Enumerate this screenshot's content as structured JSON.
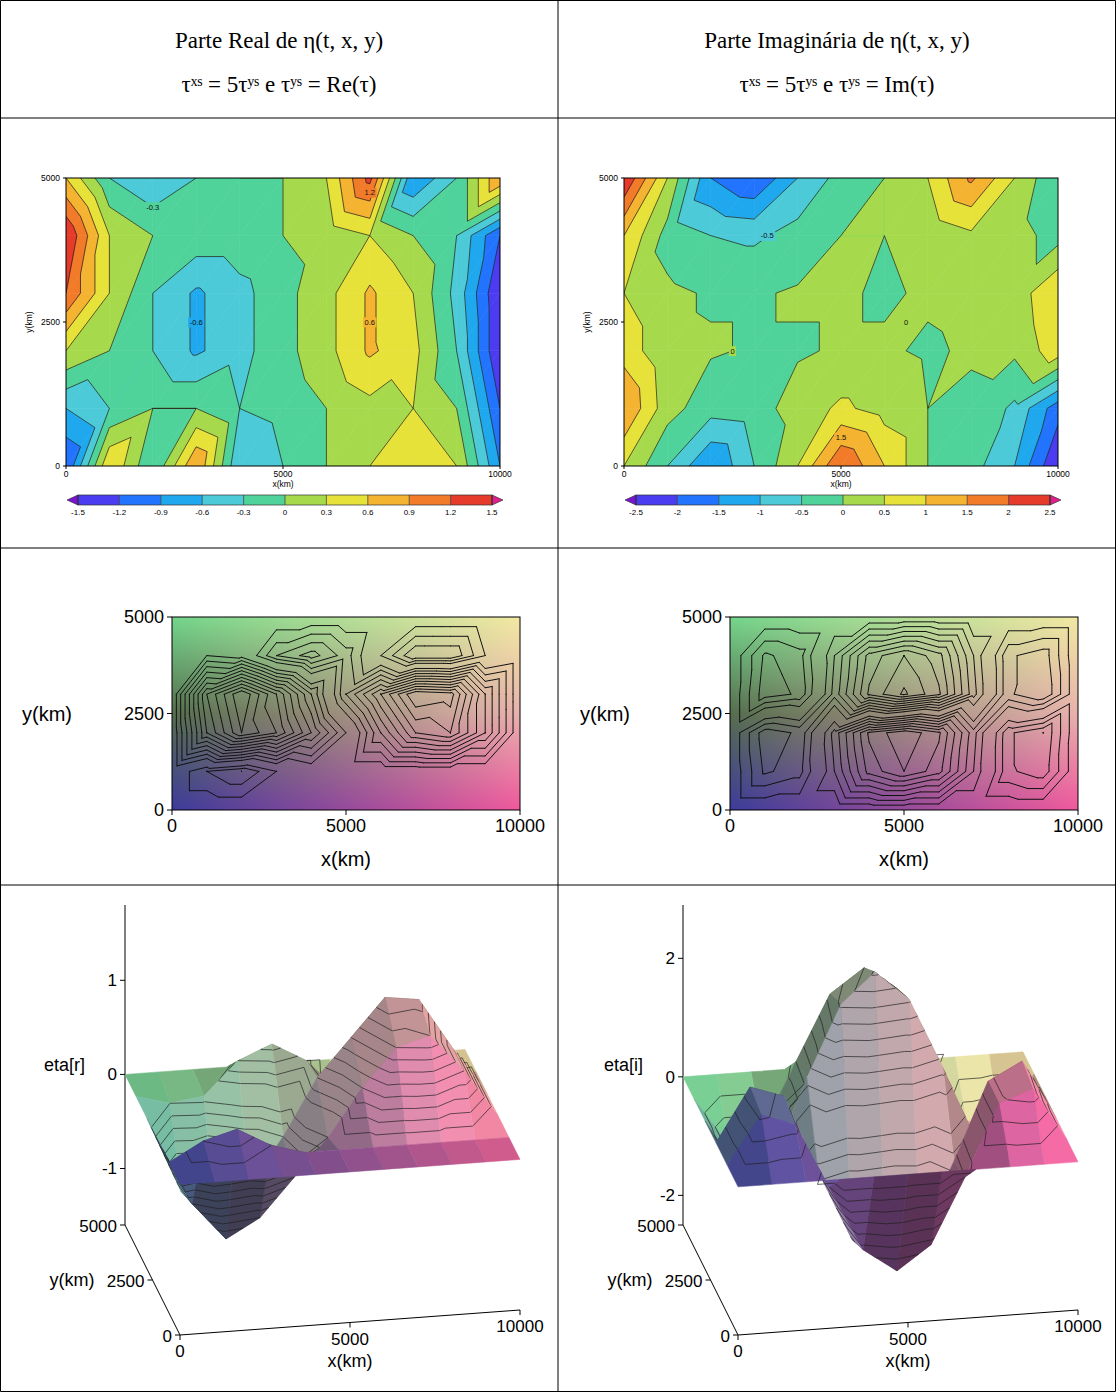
{
  "header": {
    "columns": [
      {
        "title": "Parte Real de η(t, x, y)",
        "subtitle": "τˣˢ = 5τʸˢ e τʸˢ = Re(τ)"
      },
      {
        "title": "Parte Imaginária de η(t, x, y)",
        "subtitle": "τˣˢ = 5τʸˢ e τʸˢ = Im(τ)"
      }
    ]
  },
  "chart_data": [
    {
      "type": "filled_contour",
      "x": [
        0,
        1000,
        2000,
        3000,
        4000,
        5000,
        6000,
        7000,
        8000,
        9000,
        10000
      ],
      "y": [
        0,
        1000,
        2000,
        3000,
        4000,
        5000
      ],
      "cells": [
        [
          -1.2,
          0.6,
          -0.3,
          0.9,
          -0.6,
          -0.3,
          0,
          0.3,
          0.6,
          0.3,
          -0.9
        ],
        [
          -0.6,
          -0.3,
          0,
          0,
          -0.3,
          -0.2,
          0,
          0.2,
          0.3,
          0,
          -1.2
        ],
        [
          0.3,
          0,
          -0.3,
          -0.65,
          -0.4,
          -0.1,
          0.2,
          0.65,
          0.4,
          -0.3,
          -1.5
        ],
        [
          1.2,
          0.3,
          -0.3,
          -0.65,
          -0.4,
          -0.1,
          0.2,
          0.65,
          0.3,
          -0.4,
          -1.5
        ],
        [
          1.5,
          0.3,
          0,
          -0.1,
          -0.1,
          0,
          0.1,
          0.3,
          0,
          -0.3,
          -1.2
        ],
        [
          0.6,
          -0.3,
          -0.6,
          -0.3,
          0,
          0,
          0.3,
          1.3,
          -0.9,
          -0.3,
          0.9
        ]
      ],
      "xlim": [
        0,
        10000
      ],
      "ylim": [
        0,
        5000
      ],
      "xticks": [
        0,
        5000,
        10000
      ],
      "yticks": [
        0,
        2500,
        5000
      ],
      "x_label": "x(km)",
      "y_label": "y(km)",
      "clim": [
        -1.5,
        1.5
      ],
      "cticks": [
        -1.5,
        -1.2,
        -0.9,
        -0.6,
        -0.3,
        0,
        0.3,
        0.6,
        0.9,
        1.2,
        1.5
      ],
      "annotations": [
        {
          "label": "-0.6",
          "x": 3000,
          "y": 2500
        },
        {
          "label": "0.6",
          "x": 7000,
          "y": 2500
        },
        {
          "label": "-0.3",
          "x": 2000,
          "y": 4500
        },
        {
          "label": "1.2",
          "x": 7000,
          "y": 4750
        }
      ]
    },
    {
      "type": "filled_contour",
      "x": [
        0,
        1000,
        2000,
        3000,
        4000,
        5000,
        6000,
        7000,
        8000,
        9000,
        10000
      ],
      "y": [
        0,
        1000,
        2000,
        3000,
        4000,
        5000
      ],
      "cells": [
        [
          0.5,
          -0.5,
          -1.5,
          -0.5,
          0.5,
          2.0,
          1.0,
          0,
          -0.3,
          -1,
          -2.5
        ],
        [
          1.5,
          0.2,
          -0.3,
          -0.2,
          0.2,
          0.6,
          0.3,
          0,
          -0.1,
          -0.6,
          -1.8
        ],
        [
          0.8,
          0.1,
          0.05,
          -0.05,
          -0.05,
          0.05,
          0.05,
          -0.05,
          0.05,
          0.1,
          0.8
        ],
        [
          0.5,
          0.1,
          -0.05,
          -0.05,
          0.05,
          0.05,
          -0.05,
          0.05,
          0.1,
          0.2,
          1.0
        ],
        [
          1.0,
          -0.2,
          -0.5,
          -0.6,
          -0.3,
          0,
          0,
          0.1,
          0.4,
          0.2,
          -0.2
        ],
        [
          2.5,
          0.5,
          -1.5,
          -2.0,
          -1.0,
          -0.3,
          0,
          0.5,
          1.6,
          0.5,
          -0.5
        ]
      ],
      "xlim": [
        0,
        10000
      ],
      "ylim": [
        0,
        5000
      ],
      "xticks": [
        0,
        5000,
        10000
      ],
      "yticks": [
        0,
        2500,
        5000
      ],
      "x_label": "x(km)",
      "y_label": "y(km)",
      "clim": [
        -2.5,
        2.5
      ],
      "cticks": [
        -2.5,
        -2,
        -1.5,
        -1,
        -0.5,
        0,
        0.5,
        1,
        1.5,
        2,
        2.5
      ],
      "annotations": [
        {
          "label": "0",
          "x": 2500,
          "y": 2000
        },
        {
          "label": "0",
          "x": 6500,
          "y": 2500
        },
        {
          "label": "-0.5",
          "x": 3300,
          "y": 4000
        },
        {
          "label": "1.5",
          "x": 5000,
          "y": 500
        }
      ]
    },
    {
      "type": "contour",
      "x": [
        0,
        1000,
        2000,
        3000,
        4000,
        5000,
        6000,
        7000,
        8000,
        9000,
        10000
      ],
      "y": [
        0,
        1000,
        2000,
        3000,
        4000,
        5000
      ],
      "cells": [
        [
          0,
          0,
          0,
          0,
          0,
          0,
          0,
          0,
          0,
          0,
          0
        ],
        [
          0,
          0.2,
          0.3,
          0.1,
          0,
          0,
          0,
          0,
          0,
          0,
          0
        ],
        [
          0,
          -0.7,
          -1.1,
          -0.9,
          -0.5,
          -0.1,
          0.4,
          0.8,
          0.9,
          0.5,
          0
        ],
        [
          0,
          -0.8,
          -1.2,
          -0.8,
          -0.3,
          0.3,
          0.7,
          1.1,
          1.05,
          0.5,
          0
        ],
        [
          0,
          -0.1,
          -0.05,
          0.3,
          0.45,
          0.25,
          -0.1,
          -0.4,
          -0.4,
          -0.1,
          0
        ],
        [
          0,
          0,
          0,
          0,
          0,
          0,
          0,
          0,
          0,
          0,
          0
        ]
      ],
      "levels": [
        -1.1,
        -1,
        -0.9,
        -0.8,
        -0.7,
        -0.6,
        -0.5,
        -0.4,
        -0.3,
        -0.2,
        -0.1,
        0.1,
        0.2,
        0.3,
        0.4,
        0.5,
        0.6,
        0.7,
        0.8,
        0.9,
        1
      ],
      "xlim": [
        0,
        10000
      ],
      "ylim": [
        0,
        5000
      ],
      "xticks": [
        0,
        5000,
        10000
      ],
      "yticks": [
        0,
        2500,
        5000
      ],
      "x_label": "x(km)",
      "y_label": "y(km)"
    },
    {
      "type": "contour",
      "x": [
        0,
        1000,
        2000,
        3000,
        4000,
        5000,
        6000,
        7000,
        8000,
        9000,
        10000
      ],
      "y": [
        0,
        1000,
        2000,
        3000,
        4000,
        5000
      ],
      "cells": [
        [
          0,
          0,
          0,
          0,
          0,
          0,
          0,
          0,
          0,
          0,
          0
        ],
        [
          0,
          0.8,
          0.6,
          -0.5,
          -1.6,
          -2.0,
          -1.6,
          -0.5,
          0.7,
          0.9,
          0
        ],
        [
          0,
          0.9,
          0.7,
          -0.6,
          -1.8,
          -2.2,
          -1.8,
          -0.6,
          0.7,
          1.0,
          0
        ],
        [
          0,
          -0.9,
          -0.7,
          0.6,
          1.8,
          2.3,
          1.8,
          0.6,
          -0.7,
          -1.0,
          0
        ],
        [
          0,
          -0.8,
          -0.6,
          0.5,
          1.6,
          2.0,
          1.6,
          0.5,
          -0.7,
          -0.9,
          0
        ],
        [
          0,
          0,
          0,
          0,
          0,
          0,
          0,
          0,
          0,
          0,
          0
        ]
      ],
      "levels": [
        -2,
        -1.75,
        -1.5,
        -1.25,
        -1,
        -0.75,
        -0.5,
        -0.25,
        0.25,
        0.5,
        0.75,
        1,
        1.25,
        1.5,
        1.75,
        2,
        2.25
      ],
      "xlim": [
        0,
        10000
      ],
      "ylim": [
        0,
        5000
      ],
      "xticks": [
        0,
        5000,
        10000
      ],
      "yticks": [
        0,
        2500,
        5000
      ],
      "x_label": "x(km)",
      "y_label": "y(km)"
    },
    {
      "type": "surface",
      "x": [
        0,
        1000,
        2000,
        3000,
        4000,
        5000,
        6000,
        7000,
        8000,
        9000,
        10000
      ],
      "y": [
        0,
        1000,
        2000,
        3000,
        4000,
        5000
      ],
      "cells": [
        [
          0,
          0,
          0,
          0,
          0,
          0,
          0,
          0,
          0,
          0,
          0
        ],
        [
          0,
          0.2,
          0.3,
          0.1,
          0,
          0,
          0,
          0,
          0,
          0,
          0
        ],
        [
          0,
          -0.7,
          -1.1,
          -0.9,
          -0.5,
          -0.1,
          0.4,
          0.8,
          0.9,
          0.5,
          0
        ],
        [
          0,
          -0.8,
          -1.2,
          -0.8,
          -0.3,
          0.3,
          0.7,
          1.1,
          1.05,
          0.5,
          0
        ],
        [
          0,
          -0.1,
          -0.05,
          0.3,
          0.45,
          0.25,
          -0.1,
          -0.4,
          -0.4,
          -0.1,
          0
        ],
        [
          0,
          0,
          0,
          0,
          0,
          0,
          0,
          0,
          0,
          0,
          0
        ]
      ],
      "levels": [
        -1.1,
        -1,
        -0.9,
        -0.8,
        -0.7,
        -0.6,
        -0.5,
        -0.4,
        -0.3,
        -0.2,
        -0.1,
        0.1,
        0.2,
        0.3,
        0.4,
        0.5,
        0.6,
        0.7,
        0.8,
        0.9,
        1
      ],
      "xlim": [
        0,
        10000
      ],
      "ylim": [
        0,
        5000
      ],
      "zlim": [
        -1.6,
        1.8
      ],
      "xticks": [
        0,
        5000,
        10000
      ],
      "yticks": [
        0,
        2500,
        5000
      ],
      "zticks": [
        -1,
        0,
        1
      ],
      "x_label": "x(km)",
      "y_label": "y(km)",
      "z_label": "eta[r]"
    },
    {
      "type": "surface",
      "x": [
        0,
        1000,
        2000,
        3000,
        4000,
        5000,
        6000,
        7000,
        8000,
        9000,
        10000
      ],
      "y": [
        0,
        1000,
        2000,
        3000,
        4000,
        5000
      ],
      "cells": [
        [
          0,
          0,
          0,
          0,
          0,
          0,
          0,
          0,
          0,
          0,
          0
        ],
        [
          0,
          0.8,
          0.6,
          -0.5,
          -1.6,
          -2.0,
          -1.6,
          -0.5,
          0.7,
          0.9,
          0
        ],
        [
          0,
          0.9,
          0.7,
          -0.6,
          -1.8,
          -2.2,
          -1.8,
          -0.6,
          0.7,
          1.0,
          0
        ],
        [
          0,
          -0.9,
          -0.7,
          0.6,
          1.8,
          2.3,
          1.8,
          0.6,
          -0.7,
          -1.0,
          0
        ],
        [
          0,
          -0.8,
          -0.6,
          0.5,
          1.6,
          2.0,
          1.6,
          0.5,
          -0.7,
          -0.9,
          0
        ],
        [
          0,
          0,
          0,
          0,
          0,
          0,
          0,
          0,
          0,
          0,
          0
        ]
      ],
      "levels": [
        -2,
        -1.75,
        -1.5,
        -1.25,
        -1,
        -0.75,
        -0.5,
        -0.25,
        0.25,
        0.5,
        0.75,
        1,
        1.25,
        1.5,
        1.75,
        2,
        2.25
      ],
      "xlim": [
        0,
        10000
      ],
      "ylim": [
        0,
        5000
      ],
      "zlim": [
        -2.5,
        2.9
      ],
      "xticks": [
        0,
        5000,
        10000
      ],
      "yticks": [
        0,
        2500,
        5000
      ],
      "zticks": [
        -2,
        0,
        2
      ],
      "x_label": "x(km)",
      "y_label": "y(km)",
      "z_label": "eta[i]"
    }
  ]
}
